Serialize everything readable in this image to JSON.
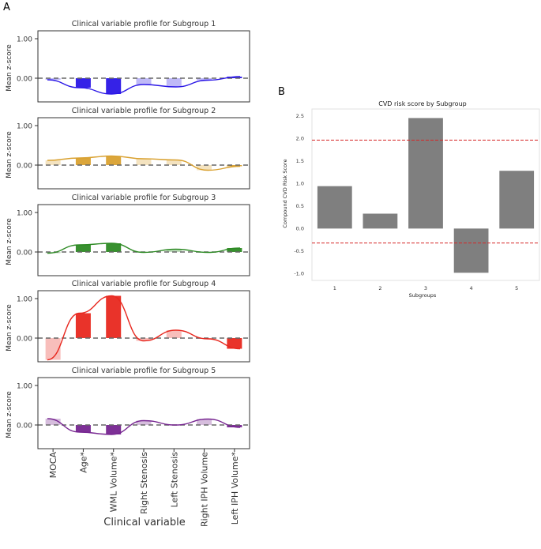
{
  "panel_labels": {
    "a": "A",
    "b": "B"
  },
  "chart_data": [
    {
      "type": "bar",
      "panel": "A",
      "xlabel": "Clinical variable",
      "ylabel": "Mean z-score",
      "ylim": [
        -0.6,
        1.2
      ],
      "yticks": [
        "1.00",
        "0.00"
      ],
      "categories": [
        "MOCA",
        "Age*",
        "WML Volume*",
        "Right Stenosis",
        "Left Stenosis",
        "Right IPH Volume",
        "Left IPH Volume*"
      ],
      "significant": [
        false,
        true,
        true,
        false,
        false,
        false,
        true
      ],
      "subplots": [
        {
          "title": "Clinical variable profile for Subgroup 1",
          "color": "#2a16e6",
          "values": [
            -0.04,
            -0.24,
            -0.4,
            -0.16,
            -0.22,
            -0.05,
            0.04
          ]
        },
        {
          "title": "Clinical variable profile for Subgroup 2",
          "color": "#d9a130",
          "values": [
            0.12,
            0.18,
            0.23,
            0.16,
            0.13,
            -0.13,
            -0.03
          ]
        },
        {
          "title": "Clinical variable profile for Subgroup 3",
          "color": "#2d8a24",
          "values": [
            -0.03,
            0.18,
            0.22,
            -0.01,
            0.07,
            -0.01,
            0.1
          ]
        },
        {
          "title": "Clinical variable profile for Subgroup 4",
          "color": "#e8281f",
          "values": [
            -0.55,
            0.63,
            1.07,
            -0.07,
            0.2,
            -0.02,
            -0.27
          ]
        },
        {
          "title": "Clinical variable profile for Subgroup 5",
          "color": "#762590",
          "values": [
            0.16,
            -0.18,
            -0.24,
            0.11,
            0.0,
            0.15,
            -0.06
          ]
        }
      ]
    },
    {
      "type": "bar",
      "panel": "B",
      "title": "CVD risk score by Subgroup",
      "xlabel": "Subgroups",
      "ylabel": "Compound CVD Risk Score",
      "categories": [
        "1",
        "2",
        "3",
        "4",
        "5"
      ],
      "values": [
        0.94,
        0.33,
        2.45,
        -0.98,
        1.28
      ],
      "color": "#7f7f7f",
      "ylim": [
        -1.15,
        2.65
      ],
      "yticks": [
        "2.5",
        "2.0",
        "1.5",
        "1.0",
        "0.5",
        "0.0",
        "-0.5",
        "-1.0"
      ],
      "thresholds": [
        1.96,
        -0.32
      ],
      "threshold_color": "#d62728"
    }
  ]
}
